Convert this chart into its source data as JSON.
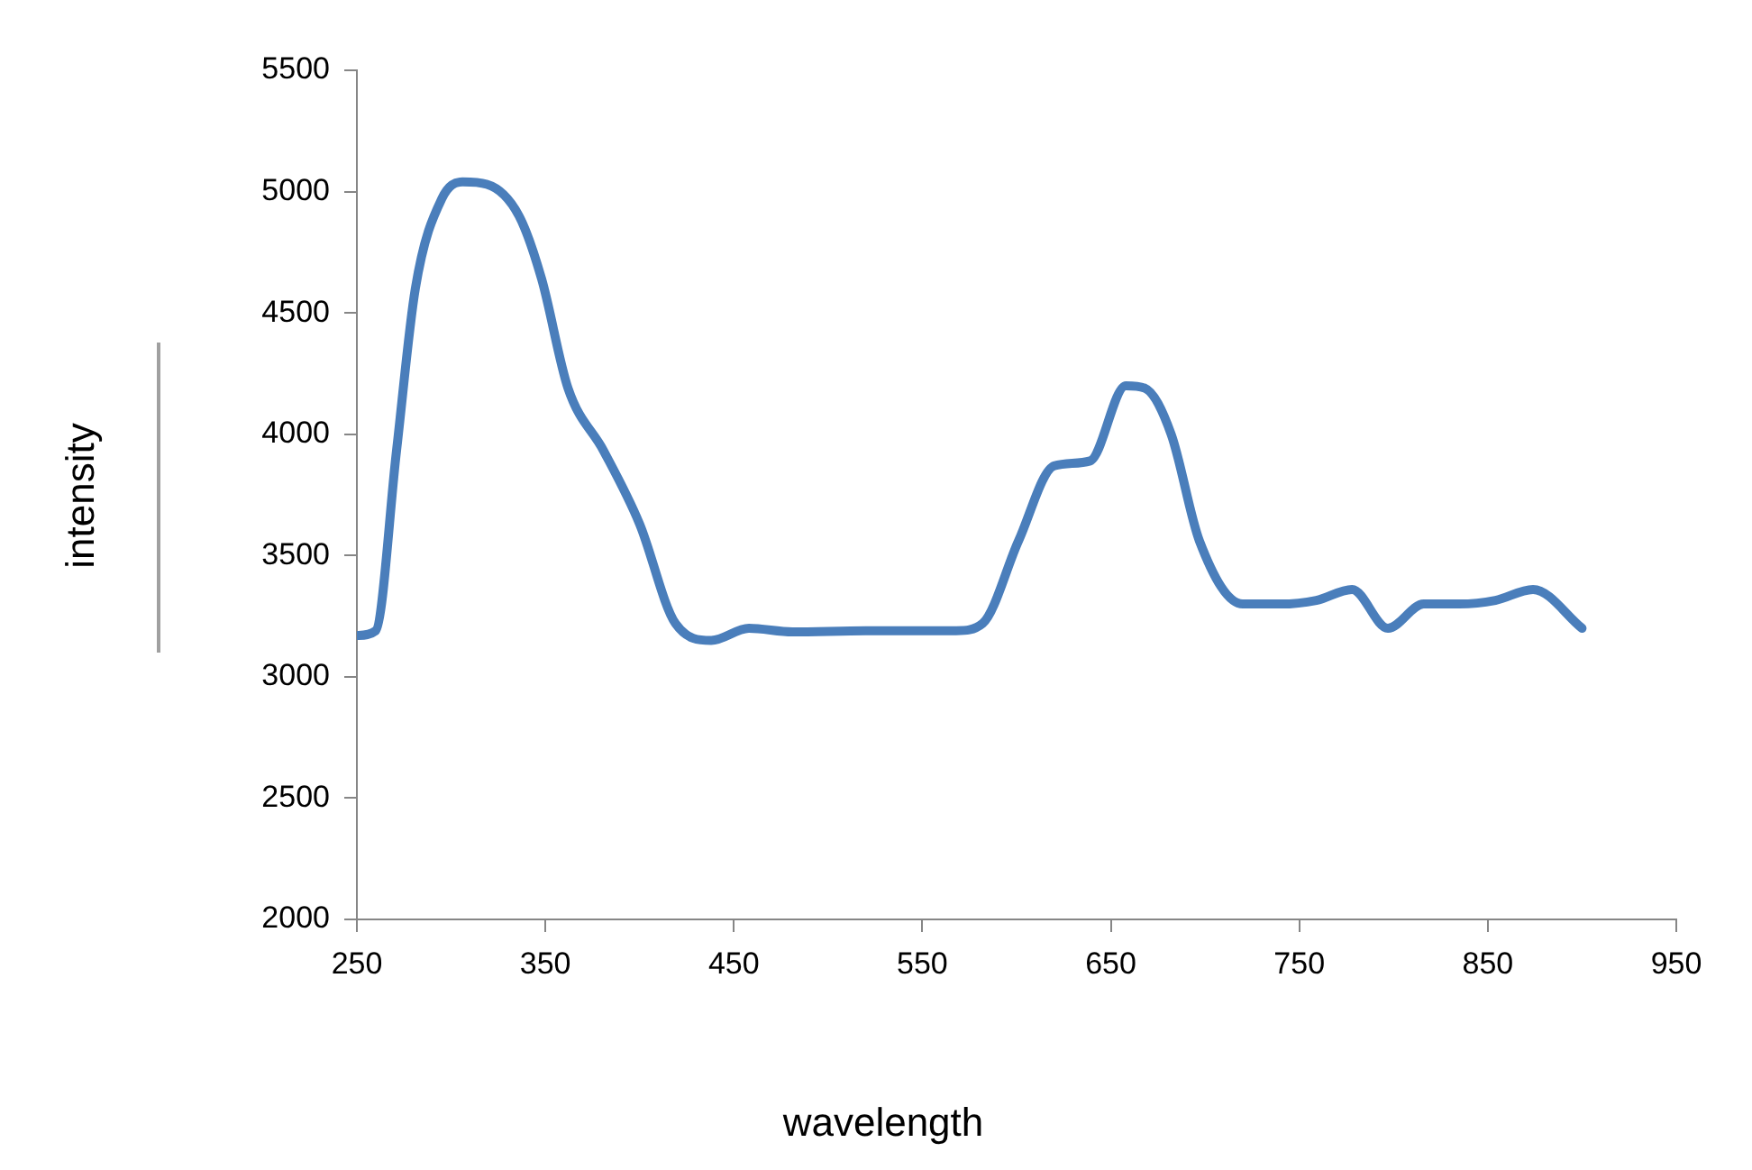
{
  "chart_data": {
    "type": "line",
    "xlabel": "wavelength",
    "ylabel": "intensity",
    "x": [
      250,
      260,
      271,
      281,
      295,
      306,
      319,
      336,
      348,
      362,
      381,
      400,
      419,
      438,
      458,
      481,
      520,
      568,
      582,
      601,
      620,
      639,
      658,
      668,
      682,
      697,
      720,
      740,
      759,
      778,
      797,
      816,
      835,
      854,
      874,
      900
    ],
    "series": [
      {
        "color": "#4a7ebb",
        "values": [
          3170,
          3190,
          3930,
          4600,
          4970,
          5040,
          5030,
          4900,
          4640,
          4190,
          3930,
          3630,
          3220,
          3150,
          3200,
          3185,
          3190,
          3190,
          3220,
          3560,
          3870,
          3890,
          4200,
          4190,
          4000,
          3560,
          3300,
          3300,
          3315,
          3360,
          3200,
          3300,
          3300,
          3315,
          3360,
          3200
        ]
      }
    ],
    "xlim": [
      250,
      950
    ],
    "xticks": [
      250,
      350,
      450,
      550,
      650,
      750,
      850,
      950
    ],
    "ylim": [
      2000,
      5500
    ],
    "yticks": [
      2000,
      2500,
      3000,
      3500,
      4000,
      4500,
      5000,
      5500
    ],
    "grid": false,
    "legend": false,
    "marker": "none",
    "line_style": "solid"
  }
}
